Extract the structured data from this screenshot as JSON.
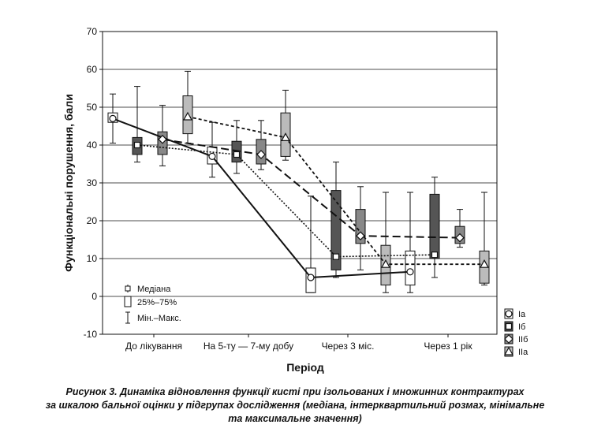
{
  "caption": {
    "line1": "Рисунок 3. Динаміка відновлення функції кисті при ізольованих і множинних контрактурах",
    "line2": "за шкалою бальної оцінки у підгрупах дослідження (медіана, інтерквартильний розмах, мінімальне",
    "line3": "та максимальне значення)"
  },
  "chart_data": {
    "type": "box",
    "xlabel": "Період",
    "ylabel": "Функціональні порушення, бали",
    "ylim": [
      -10,
      70
    ],
    "yticks": [
      -10,
      0,
      10,
      20,
      30,
      40,
      50,
      60,
      70
    ],
    "grid": true,
    "categories": [
      "До лікування",
      "На 5-ту — 7-му добу",
      "Через 3 міс.",
      "Через 1 рік"
    ],
    "stat_legend": [
      {
        "symbol": "median-marker",
        "label": "Медіана"
      },
      {
        "symbol": "box",
        "label": "25%–75%"
      },
      {
        "symbol": "whisker",
        "label": "Мін.–Макс."
      }
    ],
    "series": [
      {
        "name": "Ia",
        "marker": "circle",
        "box_color": "#ffffff",
        "line_style": "solid",
        "boxes": [
          {
            "median": 47,
            "q1": 46,
            "q3": 48.5,
            "min": 40.5,
            "max": 53.5
          },
          {
            "median": 37,
            "q1": 35,
            "q3": 39.5,
            "min": 31.5,
            "max": 46
          },
          {
            "median": 5,
            "q1": 1,
            "q3": 7.5,
            "min": 1,
            "max": 26.5
          },
          {
            "median": 6.5,
            "q1": 3,
            "q3": 12,
            "min": 1,
            "max": 27.5
          }
        ]
      },
      {
        "name": "Iб",
        "marker": "square",
        "box_color": "#555555",
        "line_style": "dotted",
        "boxes": [
          {
            "median": 40,
            "q1": 37.5,
            "q3": 42,
            "min": 35.5,
            "max": 55.5
          },
          {
            "median": 37.5,
            "q1": 35.5,
            "q3": 41,
            "min": 32.5,
            "max": 46.5
          },
          {
            "median": 10.5,
            "q1": 7,
            "q3": 28,
            "min": 5,
            "max": 35.5
          },
          {
            "median": 11,
            "q1": 10,
            "q3": 27,
            "min": 5,
            "max": 31.5
          }
        ]
      },
      {
        "name": "IIб",
        "marker": "diamond",
        "box_color": "#888888",
        "line_style": "long-dash",
        "boxes": [
          {
            "median": 41.5,
            "q1": 37.5,
            "q3": 43.5,
            "min": 34.5,
            "max": 50.5
          },
          {
            "median": 37.5,
            "q1": 35,
            "q3": 41.5,
            "min": 33.5,
            "max": 46.5
          },
          {
            "median": 16,
            "q1": 14,
            "q3": 23,
            "min": 7,
            "max": 29
          },
          {
            "median": 15.5,
            "q1": 14,
            "q3": 18.5,
            "min": 13,
            "max": 23
          }
        ]
      },
      {
        "name": "IIa",
        "marker": "triangle",
        "box_color": "#bbbbbb",
        "line_style": "short-dash",
        "boxes": [
          {
            "median": 47.5,
            "q1": 43,
            "q3": 53,
            "min": 40.5,
            "max": 59.5
          },
          {
            "median": 42,
            "q1": 37,
            "q3": 48.5,
            "min": 36,
            "max": 54.5
          },
          {
            "median": 8.5,
            "q1": 3,
            "q3": 13.5,
            "min": 1,
            "max": 27.5
          },
          {
            "median": 8.5,
            "q1": 3.5,
            "q3": 12,
            "min": 3,
            "max": 27.5
          }
        ]
      }
    ]
  }
}
